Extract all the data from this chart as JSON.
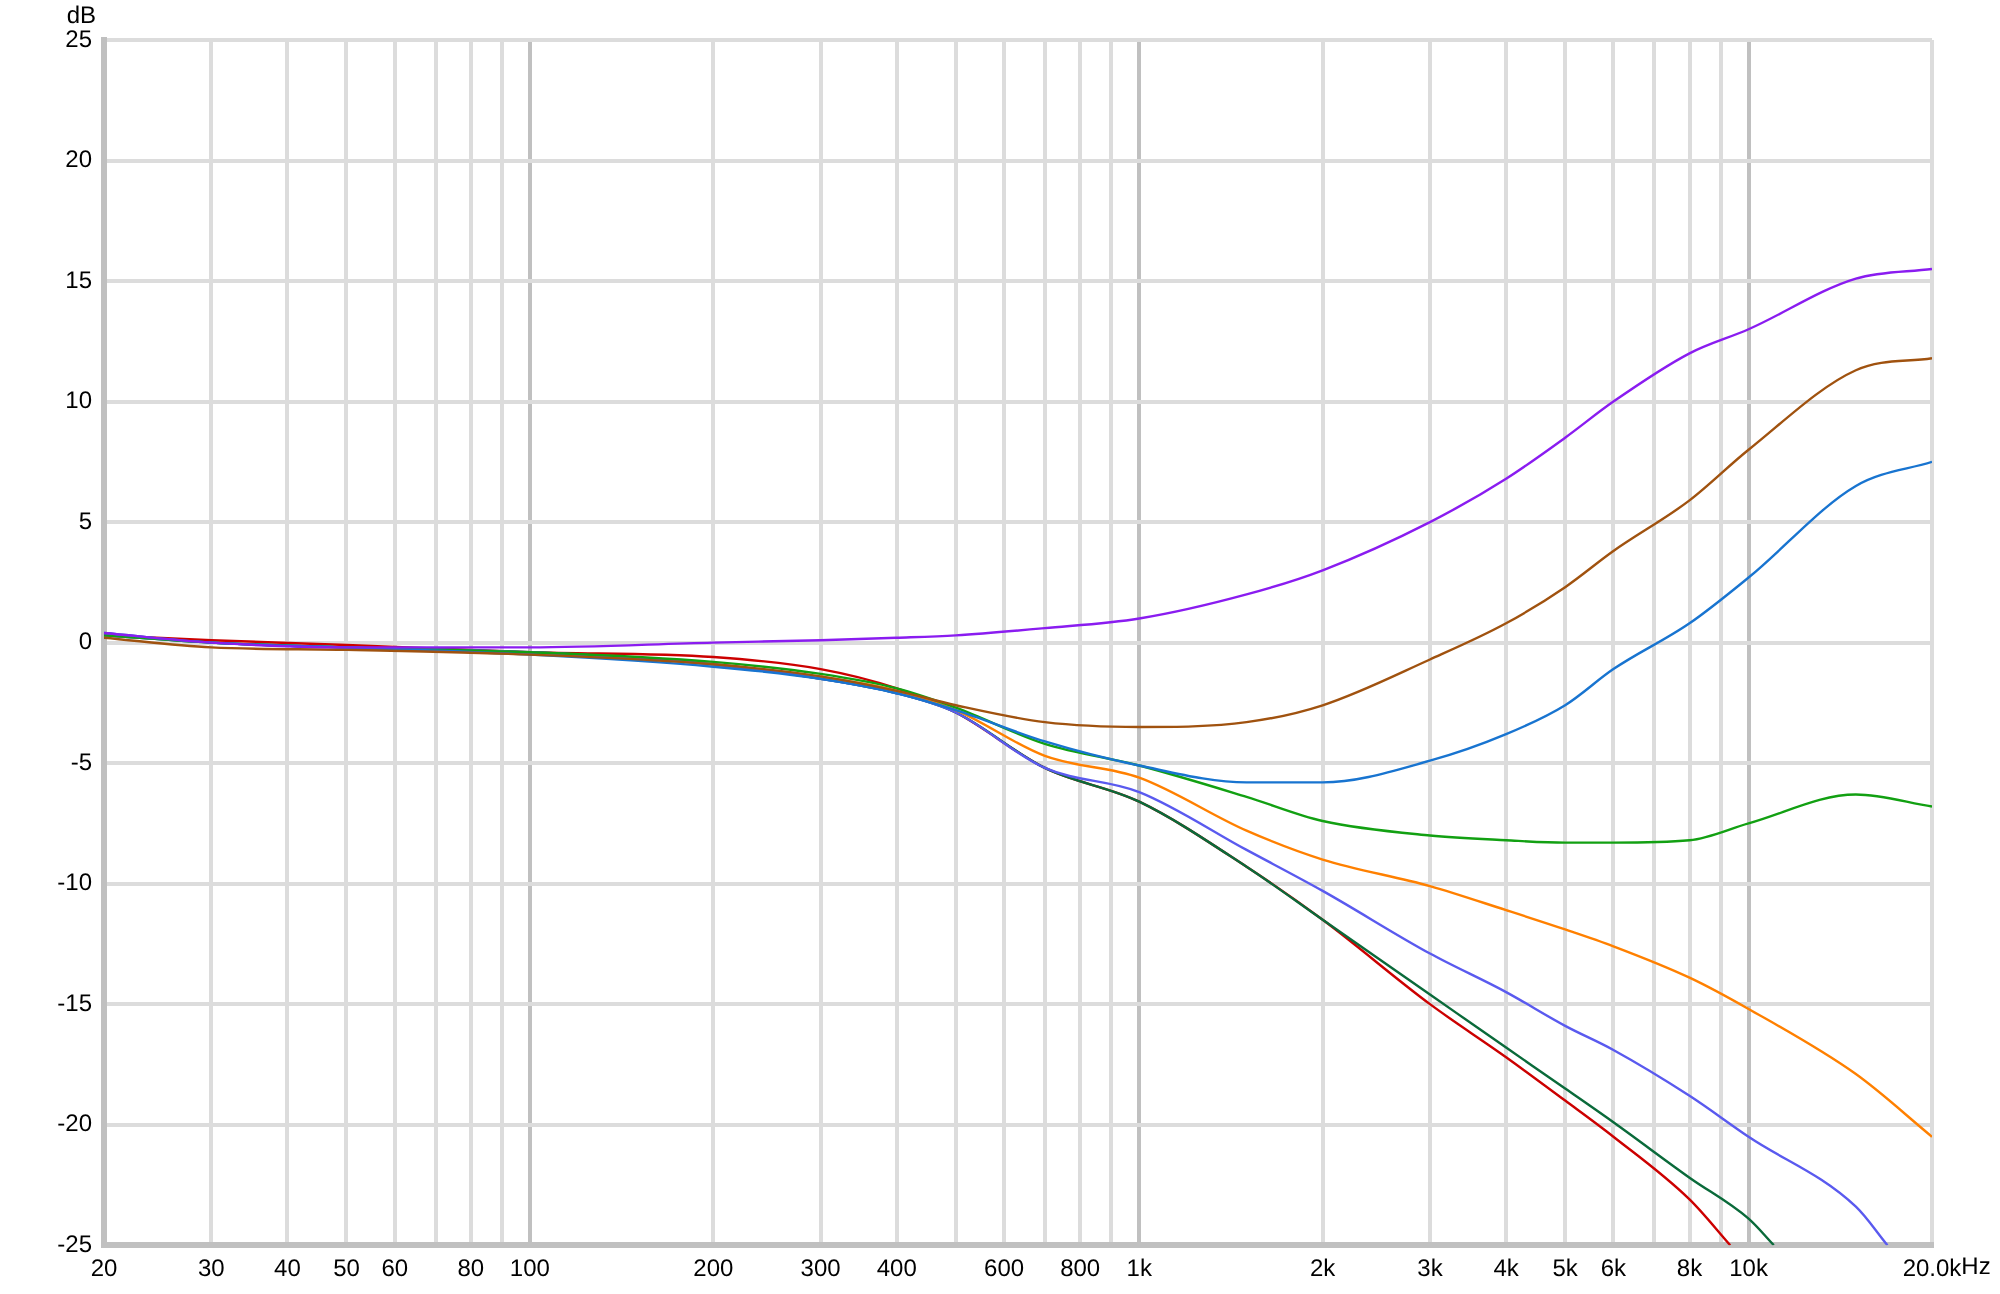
{
  "chart_data": {
    "type": "line",
    "ylabel": "dB",
    "log": "x",
    "grid": true,
    "legend": false,
    "marker": "none",
    "line_style": "solid",
    "xlim": [
      20,
      20000
    ],
    "ylim": [
      -25,
      25
    ],
    "xticks": [
      20,
      30,
      40,
      50,
      60,
      {
        "value": 70,
        "label": null
      },
      80,
      {
        "value": 90,
        "label": null
      },
      100,
      200,
      300,
      400,
      {
        "value": 500,
        "label": null
      },
      600,
      {
        "value": 700,
        "label": null
      },
      800,
      {
        "value": 900,
        "label": null
      },
      {
        "value": 1000,
        "label": "1k"
      },
      {
        "value": 2000,
        "label": "2k"
      },
      {
        "value": 3000,
        "label": "3k"
      },
      {
        "value": 4000,
        "label": "4k"
      },
      {
        "value": 5000,
        "label": "5k"
      },
      {
        "value": 6000,
        "label": "6k"
      },
      {
        "value": 7000,
        "label": null
      },
      {
        "value": 8000,
        "label": "8k"
      },
      {
        "value": 9000,
        "label": null
      },
      {
        "value": 10000,
        "label": "10k"
      },
      {
        "value": 20000,
        "label": "20.0k"
      }
    ],
    "xlabel": "Hz",
    "yticks": [
      -25,
      -20,
      -15,
      -10,
      -5,
      0,
      5,
      10,
      15,
      20,
      25
    ],
    "x": [
      20,
      30,
      50,
      100,
      200,
      300,
      400,
      500,
      700,
      1000,
      1500,
      2000,
      3000,
      4000,
      5000,
      6000,
      8000,
      10000,
      15000,
      20000
    ],
    "series": [
      {
        "color": "#8a1cf0",
        "values": [
          0.4,
          0.0,
          -0.2,
          -0.2,
          0.0,
          0.1,
          0.2,
          0.3,
          0.6,
          1.0,
          2.0,
          3.0,
          5.0,
          6.8,
          8.5,
          10.0,
          12.0,
          13.0,
          15.1,
          15.5
        ]
      },
      {
        "color": "#a0520f",
        "values": [
          0.2,
          -0.2,
          -0.3,
          -0.5,
          -0.9,
          -1.4,
          -2.0,
          -2.6,
          -3.3,
          -3.5,
          -3.3,
          -2.6,
          -0.7,
          0.8,
          2.3,
          3.8,
          5.9,
          8.0,
          11.3,
          11.8
        ]
      },
      {
        "color": "#1874d0",
        "values": [
          0.4,
          0.0,
          -0.2,
          -0.5,
          -1.0,
          -1.5,
          -2.1,
          -2.8,
          -4.1,
          -5.1,
          -5.8,
          -5.8,
          -4.9,
          -3.8,
          -2.6,
          -1.1,
          0.8,
          2.7,
          6.5,
          7.5
        ]
      },
      {
        "color": "#12a012",
        "values": [
          0.3,
          0.0,
          -0.2,
          -0.4,
          -0.8,
          -1.3,
          -1.9,
          -2.7,
          -4.2,
          -5.1,
          -6.4,
          -7.4,
          -8.0,
          -8.2,
          -8.3,
          -8.3,
          -8.2,
          -7.5,
          -6.3,
          -6.8
        ]
      },
      {
        "color": "#ff8000",
        "values": [
          null,
          null,
          null,
          null,
          null,
          -1.4,
          -2.0,
          -2.8,
          -4.7,
          -5.6,
          -7.8,
          -9.0,
          -10.1,
          -11.1,
          -11.9,
          -12.6,
          -13.9,
          -15.2,
          -17.9,
          -20.5
        ]
      },
      {
        "color": "#5a5aef",
        "x": [
          20,
          30,
          50,
          100,
          200,
          300,
          400,
          500,
          700,
          1000,
          1500,
          2000,
          3000,
          4000,
          5000,
          6000,
          8000,
          10000,
          15000,
          16900
        ],
        "values": [
          0.3,
          0.0,
          -0.2,
          -0.4,
          -0.9,
          -1.5,
          -2.1,
          -2.9,
          -5.2,
          -6.2,
          -8.6,
          -10.3,
          -12.9,
          -14.5,
          -15.9,
          -16.9,
          -18.8,
          -20.5,
          -23.4,
          -25
        ]
      },
      {
        "color": "#0a6a3a",
        "x": [
          20,
          30,
          50,
          100,
          200,
          300,
          400,
          500,
          700,
          1000,
          1500,
          2000,
          3000,
          4000,
          5000,
          6000,
          8000,
          10000,
          11000
        ],
        "values": [
          0.3,
          0.0,
          -0.2,
          -0.4,
          -0.9,
          -1.5,
          -2.1,
          -2.9,
          -5.2,
          -6.6,
          -9.3,
          -11.5,
          -14.6,
          -16.8,
          -18.5,
          -19.9,
          -22.2,
          -23.9,
          -25
        ]
      },
      {
        "color": "#cc0000",
        "x": [
          20,
          30,
          50,
          100,
          200,
          300,
          400,
          500,
          700,
          1000,
          1500,
          2000,
          3000,
          4000,
          5000,
          6000,
          8000,
          9330
        ],
        "values": [
          0.3,
          0.1,
          -0.1,
          -0.4,
          -0.6,
          -1.1,
          -1.9,
          -2.9,
          -5.2,
          -6.6,
          -9.3,
          -11.5,
          -15.0,
          -17.2,
          -19.0,
          -20.5,
          -23.1,
          -25
        ]
      }
    ]
  }
}
